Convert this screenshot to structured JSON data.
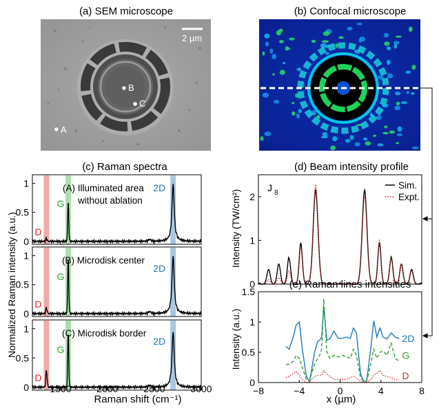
{
  "panels": {
    "a": {
      "title": "(a) SEM microscope",
      "scale": "2 µm",
      "points": [
        "A",
        "B",
        "C"
      ]
    },
    "b": {
      "title": "(b) Confocal microscope"
    },
    "c": {
      "title": "(c) Raman spectra"
    },
    "d": {
      "title": "(d) Beam intensity profile",
      "annotation": "J",
      "annotation_sub": "8"
    },
    "e": {
      "title": "(e) Raman lines intensities"
    }
  },
  "colors": {
    "D": "#d62728",
    "G": "#2ca02c",
    "2D": "#1f77b4",
    "sim": "#000000",
    "expt": "#d62728",
    "dband": "#f2a0a0",
    "gband": "#a6d9a6",
    "twodband": "#9dc1e0"
  },
  "chart_data": [
    {
      "type": "line",
      "panel": "c",
      "title": "(c) Raman spectra",
      "xlabel": "Raman shift (cm⁻¹)",
      "ylabel": "Normalized Raman intensity (a.u.)",
      "xlim": [
        1200,
        3000
      ],
      "ylim": [
        -0.05,
        1.15
      ],
      "xticks": [
        "1500",
        "2000",
        "2500",
        "3000"
      ],
      "yticks": [
        "0",
        "0.5",
        "1"
      ],
      "band_labels": [
        "D",
        "G",
        "2D"
      ],
      "band_positions": [
        1350,
        1582,
        2700
      ],
      "subplots": [
        {
          "label": "(A) Illuminated area",
          "label2": "without ablation",
          "peaks": {
            "D": 0.05,
            "G": 0.68,
            "2D": 1.0
          }
        },
        {
          "label": "(B) Microdisk center",
          "label2": "",
          "peaks": {
            "D": 0.1,
            "G": 0.95,
            "2D": 1.0
          }
        },
        {
          "label": "(C) Microdisk border",
          "label2": "",
          "peaks": {
            "D": 0.28,
            "G": 0.93,
            "2D": 0.95
          }
        }
      ]
    },
    {
      "type": "line",
      "panel": "d",
      "title": "(d) Beam intensity profile",
      "ylabel": "Intensity (TW/cm²)",
      "xlim": [
        -8,
        8
      ],
      "ylim": [
        0,
        2.5
      ],
      "yticks": [
        "0",
        "1",
        "2"
      ],
      "legend": "top-right",
      "series": [
        {
          "name": "Sim.",
          "style": "solid"
        },
        {
          "name": "Expt.",
          "style": "dotted"
        }
      ],
      "peaks": [
        {
          "x": -2.4,
          "sim": 2.15,
          "expt": 2.28
        },
        {
          "x": 2.4,
          "sim": 2.15,
          "expt": 2.0
        },
        {
          "x": -3.85,
          "sim": 0.93,
          "expt": 0.85
        },
        {
          "x": 3.85,
          "sim": 0.93,
          "expt": 1.0
        },
        {
          "x": -5.0,
          "sim": 0.58,
          "expt": 0.3
        },
        {
          "x": 5.0,
          "sim": 0.58,
          "expt": 0.6
        },
        {
          "x": -6.0,
          "sim": 0.42,
          "expt": 0.15
        },
        {
          "x": 6.0,
          "sim": 0.42,
          "expt": 0.45
        },
        {
          "x": -7.0,
          "sim": 0.3,
          "expt": 0.1
        },
        {
          "x": 7.0,
          "sim": 0.3,
          "expt": 0.3
        }
      ]
    },
    {
      "type": "line",
      "panel": "e",
      "title": "(e) Raman lines intensities",
      "xlabel": "x (µm)",
      "ylabel": "Intensity (a.u.)",
      "xlim": [
        -8,
        8
      ],
      "ylim": [
        0,
        1.5
      ],
      "xticks": [
        "−8",
        "−4",
        "0",
        "4",
        "8"
      ],
      "yticks": [
        "0",
        "0.5",
        "1",
        "1.5"
      ],
      "series": [
        {
          "name": "2D",
          "x": [
            -5.3,
            -5,
            -4.6,
            -4.3,
            -4,
            -3.7,
            -3.3,
            -3,
            -2.8,
            -2.5,
            -2.2,
            -2,
            -1.8,
            -1.6,
            -1.3,
            -1,
            -0.6,
            -0.2,
            0.2,
            0.6,
            1,
            1.3,
            1.6,
            2,
            2.3,
            2.6,
            3,
            3.3,
            3.6,
            3.9,
            4.2,
            4.6,
            5,
            5.4,
            5.8
          ],
          "y": [
            0.6,
            0.55,
            0.75,
            0.95,
            1.0,
            0.55,
            0.1,
            0.02,
            0.2,
            0.5,
            0.68,
            0.7,
            0.75,
            1.25,
            0.7,
            0.72,
            0.85,
            0.73,
            0.73,
            0.75,
            0.73,
            0.9,
            0.82,
            0.15,
            0.02,
            0.02,
            0.55,
            1.02,
            0.75,
            0.9,
            0.75,
            0.72,
            0.82,
            0.75,
            0.73
          ]
        },
        {
          "name": "G",
          "x": [
            -5.3,
            -5,
            -4.6,
            -4.3,
            -4,
            -3.7,
            -3.3,
            -3,
            -2.8,
            -2.5,
            -2.2,
            -2,
            -1.8,
            -1.6,
            -1.3,
            -1,
            -0.6,
            -0.2,
            0.2,
            0.6,
            1,
            1.3,
            1.6,
            2,
            2.3,
            2.6,
            3,
            3.3,
            3.6,
            3.9,
            4.2,
            4.6,
            5,
            5.4,
            5.8
          ],
          "y": [
            0.3,
            0.3,
            0.35,
            0.45,
            0.4,
            0.25,
            0.05,
            0.02,
            0.15,
            0.3,
            0.4,
            0.45,
            0.55,
            1.38,
            0.5,
            0.4,
            0.45,
            0.42,
            0.45,
            0.43,
            0.4,
            0.55,
            0.45,
            0.08,
            0.02,
            0.02,
            0.3,
            0.55,
            0.4,
            0.5,
            0.52,
            0.45,
            0.65,
            0.4,
            0.35
          ]
        },
        {
          "name": "D",
          "x": [
            -5.3,
            -5,
            -4.6,
            -4.3,
            -4,
            -3.7,
            -3.3,
            -3,
            -2.8,
            -2.5,
            -2.2,
            -2,
            -1.8,
            -1.6,
            -1.3,
            -1,
            -0.6,
            -0.2,
            0.2,
            0.6,
            1,
            1.3,
            1.6,
            2,
            2.3,
            2.6,
            3,
            3.3,
            3.6,
            3.9,
            4.2,
            4.6,
            5,
            5.4,
            5.8
          ],
          "y": [
            0.08,
            0.1,
            0.15,
            0.18,
            0.12,
            0.05,
            0.0,
            0.0,
            0.05,
            0.1,
            0.12,
            0.12,
            0.12,
            0.2,
            0.15,
            0.1,
            0.05,
            0.05,
            0.05,
            0.05,
            0.08,
            0.1,
            0.08,
            0.02,
            0.0,
            0.0,
            0.05,
            0.12,
            0.15,
            0.2,
            0.12,
            0.1,
            0.08,
            0.05,
            0.05
          ]
        }
      ]
    }
  ]
}
